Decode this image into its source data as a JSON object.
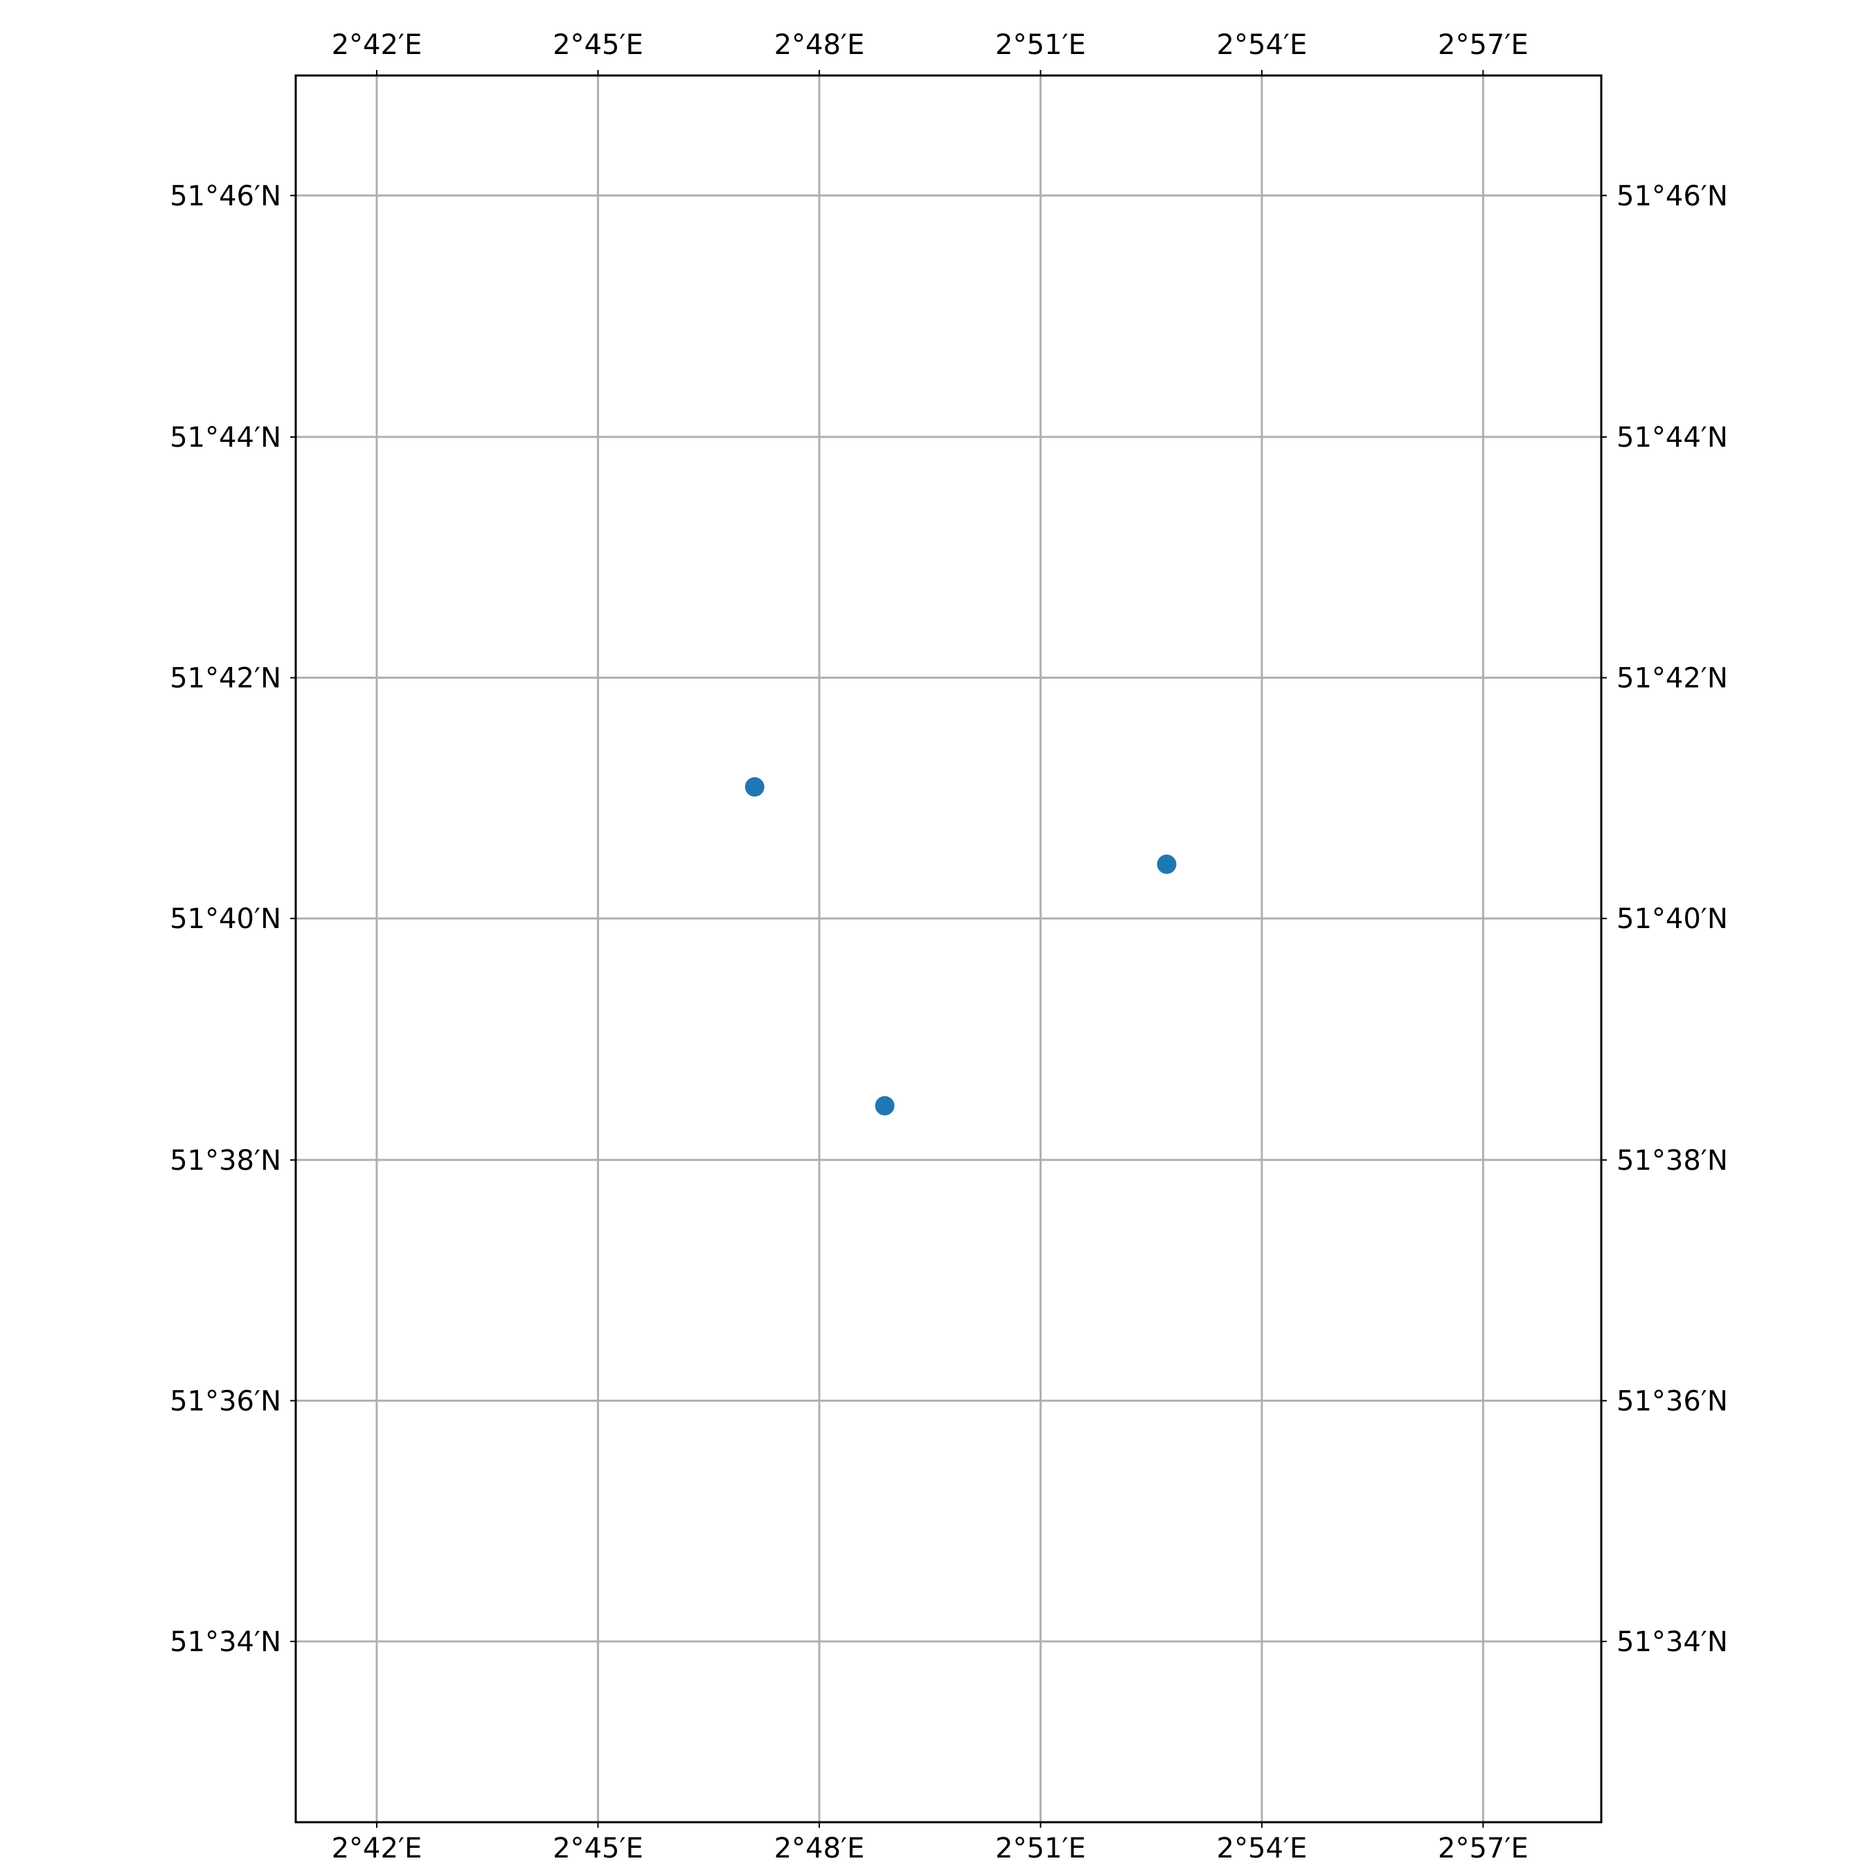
{
  "chart_data": {
    "type": "scatter",
    "title": "",
    "xlabel": "",
    "ylabel": "",
    "xlim": [
      2.6817,
      2.9767
    ],
    "ylim": [
      51.5417,
      51.7833
    ],
    "grid": true,
    "x_ticks": [
      {
        "value": 2.7,
        "label": "2°42′E"
      },
      {
        "value": 2.75,
        "label": "2°45′E"
      },
      {
        "value": 2.8,
        "label": "2°48′E"
      },
      {
        "value": 2.85,
        "label": "2°51′E"
      },
      {
        "value": 2.9,
        "label": "2°54′E"
      },
      {
        "value": 2.95,
        "label": "2°57′E"
      }
    ],
    "y_ticks": [
      {
        "value": 51.7667,
        "label": "51°46′N"
      },
      {
        "value": 51.7333,
        "label": "51°44′N"
      },
      {
        "value": 51.7,
        "label": "51°42′N"
      },
      {
        "value": 51.6667,
        "label": "51°40′N"
      },
      {
        "value": 51.6333,
        "label": "51°38′N"
      },
      {
        "value": 51.6,
        "label": "51°36′N"
      },
      {
        "value": 51.5667,
        "label": "51°34′N"
      }
    ],
    "series": [
      {
        "color": "#1f77b4",
        "points": [
          {
            "lon": 2.7854,
            "lat": 51.6849
          },
          {
            "lon": 2.8148,
            "lat": 51.6408
          },
          {
            "lon": 2.8785,
            "lat": 51.6742
          }
        ]
      }
    ]
  },
  "colors": {
    "point": "#1f77b4",
    "grid": "#b0b0b0",
    "frame": "#000000"
  }
}
